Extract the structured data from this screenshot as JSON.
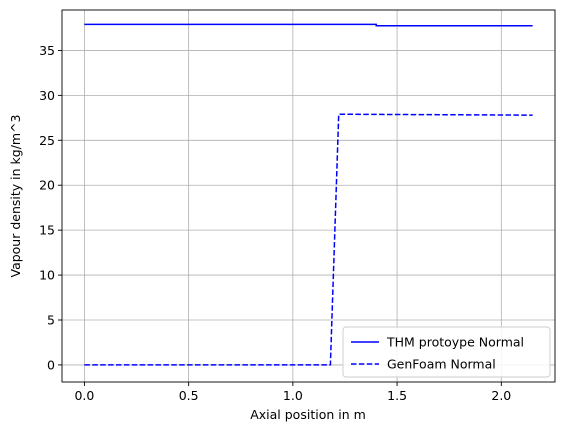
{
  "chart_data": {
    "type": "line",
    "xlabel": "Axial position in m",
    "ylabel": "Vapour density in kg/m^3",
    "xlim": [
      -0.1075,
      2.2575
    ],
    "ylim": [
      -1.9,
      39.5
    ],
    "x_ticks": [
      0.0,
      0.5,
      1.0,
      1.5,
      2.0
    ],
    "x_tick_labels": [
      "0.0",
      "0.5",
      "1.0",
      "1.5",
      "2.0"
    ],
    "y_ticks": [
      0,
      5,
      10,
      15,
      20,
      25,
      30,
      35
    ],
    "y_tick_labels": [
      "0",
      "5",
      "10",
      "15",
      "20",
      "25",
      "30",
      "35"
    ],
    "grid": true,
    "legend_position": "bottom-right",
    "series": [
      {
        "name": "THM protoype Normal",
        "color": "#0000ff",
        "style": "solid",
        "x": [
          0.0,
          1.4,
          1.4,
          2.15
        ],
        "y": [
          37.9,
          37.9,
          37.75,
          37.75
        ]
      },
      {
        "name": "GenFoam Normal",
        "color": "#0000ff",
        "style": "dashed",
        "x": [
          0.0,
          1.18,
          1.22,
          2.15
        ],
        "y": [
          0.0,
          0.0,
          27.9,
          27.8
        ]
      }
    ]
  }
}
